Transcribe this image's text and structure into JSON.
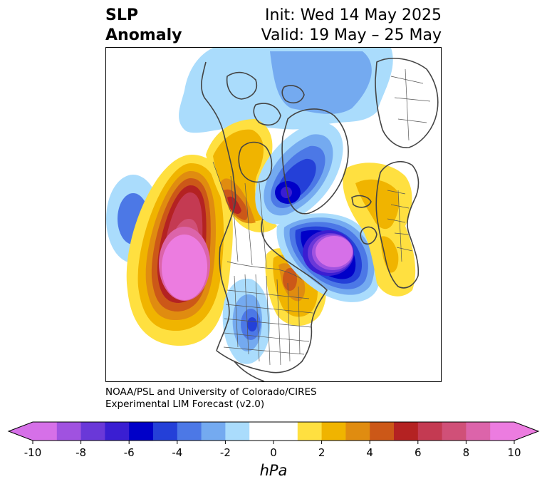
{
  "header": {
    "title_line1": "SLP",
    "title_line2": "Anomaly",
    "init": "Init: Wed 14 May 2025",
    "valid": "Valid: 19 May – 25 May"
  },
  "credit": {
    "line1": "NOAA/PSL and University of Colorado/CIRES",
    "line2": "Experimental LIM Forecast (v2.0)"
  },
  "colorbar": {
    "units": "hPa",
    "ticks": [
      "-10",
      "-8",
      "-6",
      "-4",
      "-2",
      "0",
      "2",
      "4",
      "6",
      "8",
      "10"
    ],
    "tick_values": [
      -10,
      -8,
      -6,
      -4,
      -2,
      0,
      2,
      4,
      6,
      8,
      10
    ],
    "levels": [
      -10,
      -9,
      -8,
      -7,
      -6,
      -5,
      -4,
      -3,
      -2,
      -1,
      1,
      2,
      3,
      4,
      5,
      6,
      7,
      8,
      9,
      10
    ],
    "colors": [
      "#d670e8",
      "#a052e0",
      "#6a38d8",
      "#3a1ed2",
      "#0000c8",
      "#2440d8",
      "#4c78e6",
      "#74aaf0",
      "#aadcfc",
      "#ffffff",
      "#ffe040",
      "#f0b400",
      "#e08c10",
      "#cc5818",
      "#b42222",
      "#c43a52",
      "#d05078",
      "#dc64aa",
      "#ec7ce0"
    ],
    "under_color": "#d670e8",
    "over_color": "#ec7ce0"
  },
  "anomalies": [
    {
      "region": "North Pacific",
      "sign": "positive",
      "peak_hPa": 10
    },
    {
      "region": "Northeast Pacific",
      "sign": "negative",
      "peak_hPa": -4
    },
    {
      "region": "Central United States",
      "sign": "negative",
      "peak_hPa": -4
    },
    {
      "region": "Greenland / Baffin Bay",
      "sign": "negative",
      "peak_hPa": -6
    },
    {
      "region": "North Atlantic",
      "sign": "negative",
      "peak_hPa": -10
    },
    {
      "region": "Scandinavia / Europe",
      "sign": "positive",
      "peak_hPa": 3
    },
    {
      "region": "Alaska / Western Canada",
      "sign": "positive",
      "peak_hPa": 6
    },
    {
      "region": "Eastern Canada",
      "sign": "positive",
      "peak_hPa": 4
    }
  ]
}
